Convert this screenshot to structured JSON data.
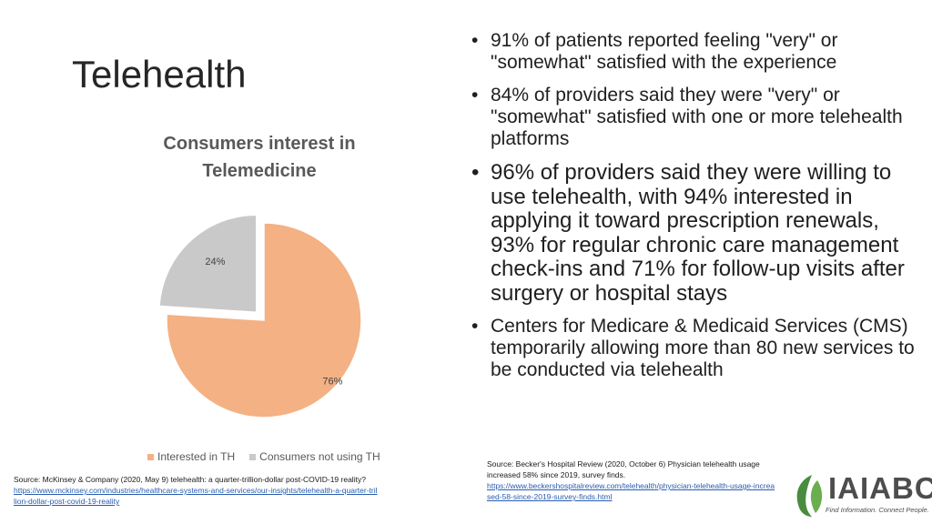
{
  "slide": {
    "title": "Telehealth"
  },
  "chart_data": {
    "type": "pie",
    "title": "Consumers interest in Telemedicine",
    "categories": [
      "Interested in TH",
      "Consumers not using TH"
    ],
    "values": [
      76,
      24
    ],
    "labels": [
      "76%",
      "24%"
    ],
    "colors": [
      "#f4b183",
      "#c9c9c9"
    ],
    "exploded": "Consumers not using TH",
    "legend": "bottom"
  },
  "bullets": [
    "91% of patients reported feeling \"very\" or \"somewhat\" satisfied with the experience",
    "84% of providers said they were \"very\" or \"somewhat\" satisfied with one or more telehealth platforms",
    "96% of providers said they were willing to use telehealth, with 94% interested in applying it toward prescription renewals, 93% for regular chronic care management check-ins and 71% for follow-up visits after surgery or hospital stays",
    "Centers for Medicare & Medicaid Services (CMS) temporarily allowing more than 80 new services to be conducted via telehealth"
  ],
  "sources": {
    "left_text": "Source: McKinsey & Company (2020, May 9) telehealth: a quarter-trillion-dollar post-COVID-19 reality?",
    "left_link": "https://www.mckinsey.com/industries/healthcare-systems-and-services/our-insights/telehealth-a-quarter-trillion-dollar-post-covid-19-reality",
    "right_text": "Source: Becker's Hospital Review (2020, October 6) Physician telehealth usage increased 58% since 2019, survey finds.",
    "right_link": "https://www.beckershospitalreview.com/telehealth/physician-telehealth-usage-increased-58-since-2019-survey-finds.html"
  },
  "logo": {
    "name": "IAIABC",
    "tagline": "Find Information. Connect People.",
    "leaf_color": "#4a8c3f"
  }
}
